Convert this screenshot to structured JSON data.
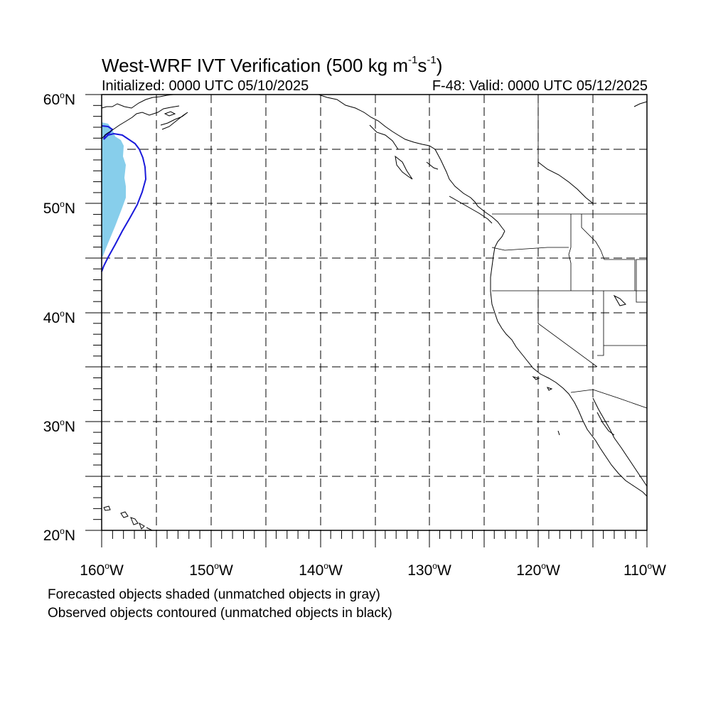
{
  "title": {
    "main": "West-WRF IVT Verification (500 kg m",
    "exp1": "-1",
    "mid": "s",
    "exp2": "-1",
    "end": ")"
  },
  "subtitle_left": "Initialized: 0000 UTC 05/10/2025",
  "subtitle_right": "F-48: Valid: 0000 UTC 05/12/2025",
  "lat_labels": [
    {
      "num": "60",
      "hem": "N"
    },
    {
      "num": "50",
      "hem": "N"
    },
    {
      "num": "40",
      "hem": "N"
    },
    {
      "num": "30",
      "hem": "N"
    },
    {
      "num": "20",
      "hem": "N"
    }
  ],
  "lon_labels": [
    {
      "num": "160",
      "hem": "W"
    },
    {
      "num": "150",
      "hem": "W"
    },
    {
      "num": "140",
      "hem": "W"
    },
    {
      "num": "130",
      "hem": "W"
    },
    {
      "num": "120",
      "hem": "W"
    },
    {
      "num": "110",
      "hem": "W"
    }
  ],
  "notes": [
    "Forecasted objects shaded (unmatched objects in gray)",
    "Observed objects contoured (unmatched objects in black)"
  ],
  "colors": {
    "forecast_object_fill": "#87ceeb",
    "observed_object_contour": "#1a1adb",
    "coastline": "#000000",
    "gridline": "#000000"
  }
}
